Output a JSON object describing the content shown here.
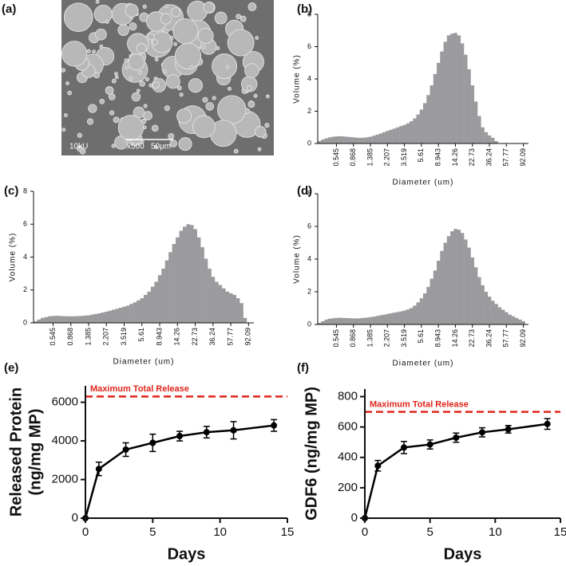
{
  "chart_data": [
    {
      "type": "image",
      "panel": "(a)",
      "image_labels": [
        "10kU",
        "x500",
        "50μm"
      ]
    },
    {
      "type": "bar",
      "panel": "(b)",
      "y_label": "Volume (%)",
      "x_label": "Diameter (um)",
      "color": "#9b9b9e",
      "categories": [
        null,
        null,
        null,
        null,
        null,
        "0.545",
        null,
        null,
        null,
        null,
        "0.868",
        null,
        null,
        null,
        null,
        "1.385",
        null,
        null,
        null,
        null,
        "2.207",
        null,
        null,
        null,
        null,
        "3.519",
        null,
        null,
        null,
        null,
        "5.61",
        null,
        null,
        null,
        null,
        "8.943",
        null,
        null,
        null,
        null,
        "14.26",
        null,
        null,
        null,
        null,
        "22.73",
        null,
        null,
        null,
        null,
        "36.24",
        null,
        null,
        null,
        null,
        "57.77",
        null,
        null,
        null,
        null,
        "92.09",
        null
      ],
      "values": [
        0.15,
        0.25,
        0.32,
        0.38,
        0.42,
        0.44,
        0.45,
        0.44,
        0.42,
        0.4,
        0.38,
        0.36,
        0.35,
        0.36,
        0.38,
        0.42,
        0.48,
        0.55,
        0.62,
        0.7,
        0.78,
        0.85,
        0.92,
        1.0,
        1.08,
        1.15,
        1.25,
        1.38,
        1.55,
        1.8,
        2.1,
        2.5,
        3.0,
        3.6,
        4.3,
        5.0,
        5.7,
        6.3,
        6.7,
        6.8,
        6.85,
        6.7,
        6.2,
        5.5,
        4.6,
        3.6,
        2.6,
        1.7,
        1.0,
        0.7,
        0.5,
        0.35,
        0.15,
        0,
        0,
        0,
        0,
        0,
        0,
        0,
        0,
        0
      ],
      "ylim": [
        0,
        8
      ],
      "yticks": [
        0,
        2,
        4,
        6,
        8
      ]
    },
    {
      "type": "bar",
      "panel": "(c)",
      "y_label": "Volume (%)",
      "x_label": "Diameter (um)",
      "color": "#9b9b9e",
      "categories": [
        null,
        null,
        null,
        null,
        null,
        "0.545",
        null,
        null,
        null,
        null,
        "0.868",
        null,
        null,
        null,
        null,
        "1.385",
        null,
        null,
        null,
        null,
        "2.207",
        null,
        null,
        null,
        null,
        "3.519",
        null,
        null,
        null,
        null,
        "5.61",
        null,
        null,
        null,
        null,
        "8.943",
        null,
        null,
        null,
        null,
        "14.26",
        null,
        null,
        null,
        null,
        "22.73",
        null,
        null,
        null,
        null,
        "36.24",
        null,
        null,
        null,
        null,
        "57.77",
        null,
        null,
        null,
        null,
        "92.09",
        null
      ],
      "values": [
        0.1,
        0.2,
        0.3,
        0.35,
        0.4,
        0.42,
        0.43,
        0.42,
        0.41,
        0.4,
        0.4,
        0.4,
        0.41,
        0.42,
        0.44,
        0.46,
        0.5,
        0.54,
        0.58,
        0.63,
        0.68,
        0.74,
        0.8,
        0.86,
        0.92,
        0.98,
        1.05,
        1.15,
        1.25,
        1.37,
        1.5,
        1.7,
        1.9,
        2.2,
        2.5,
        2.9,
        3.3,
        3.8,
        4.3,
        4.8,
        5.2,
        5.6,
        5.85,
        6.0,
        5.95,
        5.7,
        5.2,
        4.6,
        3.9,
        3.3,
        2.8,
        2.5,
        2.3,
        2.1,
        1.9,
        1.8,
        1.7,
        1.5,
        1.2,
        0.3,
        0,
        0
      ],
      "ylim": [
        0,
        8
      ],
      "yticks": [
        0,
        2,
        4,
        6,
        8
      ]
    },
    {
      "type": "bar",
      "panel": "(d)",
      "y_label": "Volume (%)",
      "x_label": "Diameter (um)",
      "color": "#9b9b9e",
      "categories": [
        null,
        null,
        null,
        null,
        null,
        "0.545",
        null,
        null,
        null,
        null,
        "0.868",
        null,
        null,
        null,
        null,
        "1.385",
        null,
        null,
        null,
        null,
        "2.207",
        null,
        null,
        null,
        null,
        "3.519",
        null,
        null,
        null,
        null,
        "5.61",
        null,
        null,
        null,
        null,
        "8.943",
        null,
        null,
        null,
        null,
        "14.26",
        null,
        null,
        null,
        null,
        "22.73",
        null,
        null,
        null,
        null,
        "36.24",
        null,
        null,
        null,
        null,
        "57.77",
        null,
        null,
        null,
        null,
        "92.09",
        null
      ],
      "values": [
        0.1,
        0.2,
        0.3,
        0.35,
        0.38,
        0.4,
        0.41,
        0.4,
        0.39,
        0.38,
        0.37,
        0.37,
        0.38,
        0.4,
        0.42,
        0.45,
        0.48,
        0.52,
        0.56,
        0.6,
        0.64,
        0.68,
        0.72,
        0.76,
        0.8,
        0.85,
        0.92,
        1.0,
        1.15,
        1.35,
        1.6,
        1.9,
        2.3,
        2.8,
        3.3,
        3.9,
        4.5,
        5.0,
        5.4,
        5.7,
        5.85,
        5.8,
        5.6,
        5.2,
        4.7,
        4.1,
        3.5,
        2.9,
        2.4,
        2.0,
        1.7,
        1.45,
        1.25,
        1.05,
        0.9,
        0.75,
        0.6,
        0.5,
        0.4,
        0.3,
        0.2,
        0
      ],
      "ylim": [
        0,
        8
      ],
      "yticks": [
        0,
        2,
        4,
        6,
        8
      ]
    },
    {
      "type": "line",
      "panel": "(e)",
      "y_label": [
        "Released Protein",
        "(ng/mg MP)"
      ],
      "x_label": "Days",
      "color": "#000000",
      "x": [
        0,
        1,
        3,
        5,
        7,
        9,
        11,
        14
      ],
      "values": [
        0,
        2550,
        3550,
        3900,
        4250,
        4450,
        4550,
        4800
      ],
      "errors": [
        0,
        350,
        350,
        450,
        250,
        300,
        450,
        300
      ],
      "xlim": [
        0,
        15
      ],
      "xticks": [
        0,
        5,
        10,
        15
      ],
      "ylim": [
        0,
        6850
      ],
      "yticks": [
        0,
        2000,
        4000,
        6000
      ],
      "reference_line": {
        "value": 6300,
        "label": "Maximum Total Release",
        "color": "#e0241b"
      }
    },
    {
      "type": "line",
      "panel": "(f)",
      "y_label": [
        "GDF6 (ng/mg MP)"
      ],
      "x_label": "Days",
      "color": "#000000",
      "x": [
        0,
        1,
        3,
        5,
        7,
        9,
        11,
        14
      ],
      "values": [
        0,
        345,
        465,
        485,
        530,
        565,
        585,
        620
      ],
      "errors": [
        0,
        35,
        40,
        30,
        30,
        30,
        25,
        35
      ],
      "xlim": [
        0,
        15
      ],
      "xticks": [
        0,
        5,
        10,
        15
      ],
      "ylim": [
        0,
        850
      ],
      "yticks": [
        0,
        200,
        400,
        600,
        800
      ],
      "reference_line": {
        "value": 700,
        "label": "Maximum Total Release",
        "color": "#e0241b"
      }
    }
  ]
}
